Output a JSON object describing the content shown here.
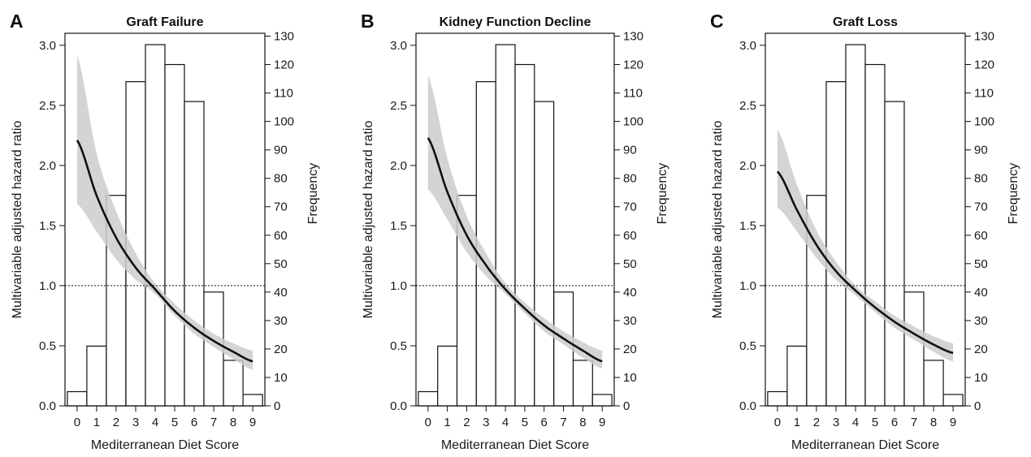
{
  "chart_data": [
    {
      "type": "bar",
      "panel_letter": "A",
      "title": "Graft Failure",
      "xlabel": "Mediterranean Diet Score",
      "ylabel_left": "Multivariable adjusted hazard ratio",
      "ylabel_right": "Frequency",
      "x_ticks": [
        0,
        1,
        2,
        3,
        4,
        5,
        6,
        7,
        8,
        9
      ],
      "left_axis": {
        "ylim": [
          0,
          3.1
        ],
        "ticks": [
          0.0,
          0.5,
          1.0,
          1.5,
          2.0,
          2.5,
          3.0
        ]
      },
      "right_axis": {
        "ylim": [
          0,
          131
        ],
        "ticks": [
          0,
          10,
          20,
          30,
          40,
          50,
          60,
          70,
          80,
          90,
          100,
          110,
          120,
          130
        ]
      },
      "reference_line": 1.0,
      "histogram": {
        "categories": [
          0,
          1,
          2,
          3,
          4,
          5,
          6,
          7,
          8,
          9
        ],
        "frequency": [
          5,
          21,
          74,
          114,
          127,
          120,
          107,
          40,
          16,
          4
        ]
      },
      "hazard_curve": {
        "x": [
          0,
          1,
          2,
          3,
          4,
          5,
          6,
          7,
          8,
          9
        ],
        "hr": [
          2.21,
          1.75,
          1.4,
          1.15,
          0.97,
          0.79,
          0.65,
          0.54,
          0.45,
          0.37
        ],
        "ci_lower": [
          1.68,
          1.45,
          1.22,
          1.05,
          0.93,
          0.75,
          0.6,
          0.49,
          0.39,
          0.3
        ],
        "ci_upper": [
          2.92,
          2.1,
          1.62,
          1.27,
          1.02,
          0.85,
          0.71,
          0.6,
          0.52,
          0.46
        ]
      }
    },
    {
      "type": "bar",
      "panel_letter": "B",
      "title": "Kidney Function Decline",
      "xlabel": "Mediterranean Diet Score",
      "ylabel_left": "Multivariable adjusted hazard ratio",
      "ylabel_right": "Frequency",
      "x_ticks": [
        0,
        1,
        2,
        3,
        4,
        5,
        6,
        7,
        8,
        9
      ],
      "left_axis": {
        "ylim": [
          0,
          3.1
        ],
        "ticks": [
          0.0,
          0.5,
          1.0,
          1.5,
          2.0,
          2.5,
          3.0
        ]
      },
      "right_axis": {
        "ylim": [
          0,
          131
        ],
        "ticks": [
          0,
          10,
          20,
          30,
          40,
          50,
          60,
          70,
          80,
          90,
          100,
          110,
          120,
          130
        ]
      },
      "reference_line": 1.0,
      "histogram": {
        "categories": [
          0,
          1,
          2,
          3,
          4,
          5,
          6,
          7,
          8,
          9
        ],
        "frequency": [
          5,
          21,
          74,
          114,
          127,
          120,
          107,
          40,
          16,
          4
        ]
      },
      "hazard_curve": {
        "x": [
          0,
          1,
          2,
          3,
          4,
          5,
          6,
          7,
          8,
          9
        ],
        "hr": [
          2.23,
          1.78,
          1.42,
          1.17,
          0.97,
          0.81,
          0.67,
          0.56,
          0.46,
          0.37
        ],
        "ci_lower": [
          1.8,
          1.55,
          1.28,
          1.08,
          0.93,
          0.77,
          0.62,
          0.51,
          0.4,
          0.31
        ],
        "ci_upper": [
          2.75,
          2.06,
          1.58,
          1.27,
          1.02,
          0.86,
          0.73,
          0.62,
          0.53,
          0.46
        ]
      }
    },
    {
      "type": "bar",
      "panel_letter": "C",
      "title": "Graft Loss",
      "xlabel": "Mediterranean Diet Score",
      "ylabel_left": "Multivariable adjusted hazard ratio",
      "ylabel_right": "Frequency",
      "x_ticks": [
        0,
        1,
        2,
        3,
        4,
        5,
        6,
        7,
        8,
        9
      ],
      "left_axis": {
        "ylim": [
          0,
          3.1
        ],
        "ticks": [
          0.0,
          0.5,
          1.0,
          1.5,
          2.0,
          2.5,
          3.0
        ]
      },
      "right_axis": {
        "ylim": [
          0,
          131
        ],
        "ticks": [
          0,
          10,
          20,
          30,
          40,
          50,
          60,
          70,
          80,
          90,
          100,
          110,
          120,
          130
        ]
      },
      "reference_line": 1.0,
      "histogram": {
        "categories": [
          0,
          1,
          2,
          3,
          4,
          5,
          6,
          7,
          8,
          9
        ],
        "frequency": [
          5,
          21,
          74,
          114,
          127,
          120,
          107,
          40,
          16,
          4
        ]
      },
      "hazard_curve": {
        "x": [
          0,
          1,
          2,
          3,
          4,
          5,
          6,
          7,
          8,
          9
        ],
        "hr": [
          1.95,
          1.63,
          1.34,
          1.12,
          0.96,
          0.82,
          0.7,
          0.6,
          0.51,
          0.44
        ],
        "ci_lower": [
          1.65,
          1.45,
          1.23,
          1.05,
          0.92,
          0.78,
          0.65,
          0.55,
          0.45,
          0.37
        ],
        "ci_upper": [
          2.3,
          1.84,
          1.46,
          1.2,
          1.0,
          0.87,
          0.75,
          0.66,
          0.58,
          0.52
        ]
      }
    }
  ]
}
